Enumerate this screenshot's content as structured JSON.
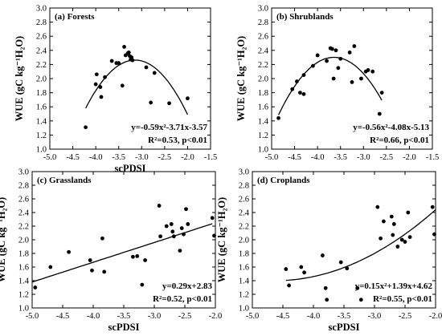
{
  "chart_data": [
    {
      "type": "scatter",
      "title": "(a) Forests",
      "xlabel": "scPDSI",
      "ylabel": "WUE (gC kg⁻¹H₂O)",
      "xlim": [
        -5.0,
        -1.5
      ],
      "ylim": [
        1.0,
        3.0
      ],
      "xticks": [
        "-5.0",
        "-4.5",
        "-4.0",
        "-3.5",
        "-3.0",
        "-2.5",
        "-2.0",
        "-1.5"
      ],
      "yticks": [
        "1.0",
        "1.2",
        "1.4",
        "1.6",
        "1.8",
        "2.0",
        "2.2",
        "2.4",
        "2.6",
        "2.8",
        "3.0"
      ],
      "grid": false,
      "points": {
        "x": [
          -4.22,
          -4.0,
          -3.98,
          -3.9,
          -3.88,
          -3.8,
          -3.65,
          -3.55,
          -3.5,
          -3.42,
          -3.38,
          -3.35,
          -3.3,
          -3.28,
          -3.26,
          -3.24,
          -3.22,
          -3.2,
          -2.9,
          -2.8,
          -2.72,
          -2.4,
          -2.0
        ],
        "y": [
          1.31,
          1.92,
          2.06,
          1.88,
          1.74,
          2.02,
          2.25,
          2.22,
          2.22,
          1.9,
          2.45,
          2.33,
          2.36,
          2.37,
          2.32,
          2.27,
          2.3,
          2.26,
          2.16,
          1.66,
          2.08,
          1.65,
          1.72
        ]
      },
      "fit": {
        "type": "quadratic",
        "a": -0.59,
        "b": -3.71,
        "c": -3.57,
        "x_range": [
          -4.22,
          -2.0
        ]
      },
      "equation": "y=-0.59x²-3.71x-3.57",
      "stats": "R²=0.53, p<0.01"
    },
    {
      "type": "scatter",
      "title": "(b) Shrublands",
      "xlabel": "",
      "ylabel": "WUE (gC kg⁻¹H₂O)",
      "xlim": [
        -5.0,
        -1.5
      ],
      "ylim": [
        1.0,
        3.0
      ],
      "xticks": [
        "-5.0",
        "-4.5",
        "-4.0",
        "-3.5",
        "-3.0",
        "-2.5",
        "-2.0",
        "-1.5"
      ],
      "yticks": [
        "1.0",
        "1.2",
        "1.4",
        "1.6",
        "1.8",
        "2.0",
        "2.2",
        "2.4",
        "2.6",
        "2.8",
        "3.0"
      ],
      "grid": false,
      "points": {
        "x": [
          -4.85,
          -4.55,
          -4.45,
          -4.38,
          -4.3,
          -4.3,
          -4.1,
          -4.0,
          -3.8,
          -3.72,
          -3.68,
          -3.65,
          -3.6,
          -3.55,
          -3.5,
          -3.3,
          -3.25,
          -3.2,
          -3.05,
          -2.95,
          -2.9,
          -2.8,
          -2.65,
          -2.6
        ],
        "y": [
          1.44,
          1.85,
          1.96,
          1.8,
          2.05,
          1.78,
          2.18,
          2.33,
          2.25,
          2.43,
          2.42,
          2.0,
          2.4,
          2.15,
          2.28,
          2.37,
          1.95,
          2.46,
          2.0,
          2.1,
          2.12,
          2.1,
          1.5,
          1.8
        ]
      },
      "fit": {
        "type": "quadratic",
        "a": -0.56,
        "b": -4.08,
        "c": -5.13,
        "x_range": [
          -4.85,
          -2.6
        ]
      },
      "equation": "y=-0.56x²-4.08x-5.13",
      "stats": "R²=0.66, p<0.01"
    },
    {
      "type": "scatter",
      "title": "(c) Grasslands",
      "xlabel": "scPDSI",
      "ylabel": "WUE (gC kg⁻¹H₂O)",
      "xlim": [
        -5.0,
        -2.0
      ],
      "ylim": [
        1.0,
        3.0
      ],
      "xticks": [
        "-5.0",
        "-4.5",
        "-4.0",
        "-3.5",
        "-3.0",
        "-2.5",
        "-2.0"
      ],
      "yticks": [
        "1.0",
        "1.2",
        "1.4",
        "1.6",
        "1.8",
        "2.0",
        "2.2",
        "2.4",
        "2.6",
        "2.8",
        "3.0"
      ],
      "grid": false,
      "points": {
        "x": [
          -4.95,
          -4.7,
          -4.4,
          -4.05,
          -4.02,
          -3.85,
          -3.82,
          -3.35,
          -3.28,
          -3.2,
          -3.15,
          -2.92,
          -2.9,
          -2.8,
          -2.72,
          -2.7,
          -2.68,
          -2.58,
          -2.55,
          -2.52,
          -2.48,
          -2.45,
          -2.05,
          -2.02
        ],
        "y": [
          1.3,
          1.6,
          1.82,
          1.7,
          1.55,
          2.02,
          1.53,
          1.75,
          1.76,
          1.34,
          1.7,
          2.5,
          2.05,
          2.2,
          2.23,
          2.12,
          2.05,
          1.84,
          2.17,
          2.08,
          2.45,
          2.23,
          2.32,
          2.06
        ]
      },
      "fit": {
        "type": "linear",
        "m": 0.29,
        "b": 2.83,
        "x_range": [
          -5.0,
          -2.05
        ]
      },
      "equation": "y=0.29x+2.83",
      "stats": "R²=0.52, p<0.01"
    },
    {
      "type": "scatter",
      "title": "(d) Croplands",
      "xlabel": "scPDSI",
      "ylabel": "WUE (gC kg⁻¹H₂O)",
      "xlim": [
        -5.0,
        -2.0
      ],
      "ylim": [
        1.0,
        3.0
      ],
      "xticks": [
        "-5.0",
        "-4.5",
        "-4.0",
        "-3.5",
        "-3.0",
        "-2.5",
        "-2.0"
      ],
      "yticks": [
        "1.0",
        "1.2",
        "1.4",
        "1.6",
        "1.8",
        "2.0",
        "2.2",
        "2.4",
        "2.6",
        "2.8",
        "3.0"
      ],
      "grid": false,
      "points": {
        "x": [
          -4.45,
          -4.4,
          -4.2,
          -4.15,
          -3.85,
          -3.8,
          -3.78,
          -3.55,
          -3.45,
          -3.28,
          -3.22,
          -2.95,
          -2.9,
          -2.85,
          -2.72,
          -2.7,
          -2.68,
          -2.62,
          -2.55,
          -2.5,
          -2.45,
          -2.42,
          -2.05,
          -2.02
        ],
        "y": [
          1.57,
          1.33,
          1.6,
          1.52,
          1.77,
          1.29,
          1.12,
          1.67,
          1.58,
          1.29,
          1.12,
          2.48,
          2.02,
          2.27,
          2.34,
          2.07,
          2.23,
          1.9,
          2.0,
          1.97,
          2.4,
          2.04,
          2.48,
          2.08
        ]
      },
      "fit": {
        "type": "quadratic",
        "a": 0.15,
        "b": 1.39,
        "c": 4.62,
        "x_range": [
          -4.45,
          -2.0
        ]
      },
      "equation": "y=0.15x²+1.39x+4.62",
      "stats": "R²=0.55, p<0.01"
    }
  ]
}
